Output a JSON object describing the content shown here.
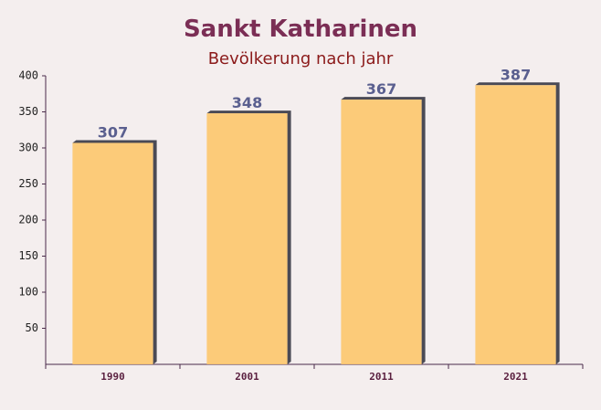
{
  "chart_data": {
    "type": "bar",
    "title": "Sankt Katharinen",
    "subtitle": "Bevölkerung nach jahr",
    "categories": [
      "1990",
      "2001",
      "2011",
      "2021"
    ],
    "values": [
      307,
      348,
      367,
      387
    ],
    "color": "#fdc76b",
    "ylim": [
      0,
      400
    ],
    "yticks": [
      50,
      100,
      150,
      200,
      250,
      300,
      350,
      400
    ]
  }
}
